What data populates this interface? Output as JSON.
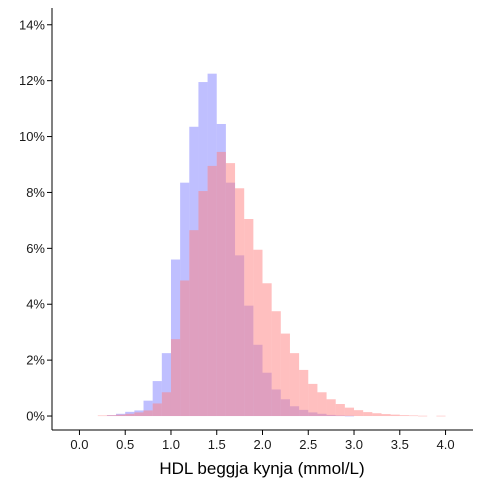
{
  "chart_data": {
    "type": "bar",
    "title": "",
    "xlabel": "HDL beggja kynja (mmol/L)",
    "ylabel": "",
    "x_range": [
      -0.3,
      4.3
    ],
    "ylim": [
      -0.005,
      0.146
    ],
    "x_ticks": [
      {
        "value": 0.0,
        "label": "0.0"
      },
      {
        "value": 0.5,
        "label": "0.5"
      },
      {
        "value": 1.0,
        "label": "1.0"
      },
      {
        "value": 1.5,
        "label": "1.5"
      },
      {
        "value": 2.0,
        "label": "2.0"
      },
      {
        "value": 2.5,
        "label": "2.5"
      },
      {
        "value": 3.0,
        "label": "3.0"
      },
      {
        "value": 3.5,
        "label": "3.5"
      },
      {
        "value": 4.0,
        "label": "4.0"
      }
    ],
    "y_ticks": [
      {
        "value": 0.0,
        "label": "0%"
      },
      {
        "value": 0.02,
        "label": "2%"
      },
      {
        "value": 0.04,
        "label": "4%"
      },
      {
        "value": 0.06,
        "label": "6%"
      },
      {
        "value": 0.08,
        "label": "8%"
      },
      {
        "value": 0.1,
        "label": "10%"
      },
      {
        "value": 0.12,
        "label": "12%"
      },
      {
        "value": 0.14,
        "label": "14%"
      }
    ],
    "grid": false,
    "legend": "none",
    "bin_width": 0.1,
    "bin_start": 0.2,
    "series": [
      {
        "color": "#7f7fff",
        "values": [
          0,
          0.0003,
          0.0008,
          0.0015,
          0.002,
          0.0055,
          0.0125,
          0.0225,
          0.056,
          0.0835,
          0.1035,
          0.1195,
          0.1225,
          0.1045,
          0.0835,
          0.0575,
          0.0395,
          0.0255,
          0.0155,
          0.0095,
          0.006,
          0.0035,
          0.0022,
          0.0013,
          0.0008,
          0.0004,
          0.0002,
          0.0001,
          0,
          0,
          0,
          0,
          0,
          0,
          0,
          0,
          0,
          0
        ]
      },
      {
        "color": "#ff7f7f",
        "values": [
          0.0002,
          0.0003,
          0.0005,
          0.0008,
          0.0013,
          0.002,
          0.0045,
          0.0085,
          0.0275,
          0.0485,
          0.0665,
          0.0805,
          0.0895,
          0.0945,
          0.0905,
          0.0815,
          0.0705,
          0.0595,
          0.0475,
          0.0375,
          0.0295,
          0.0225,
          0.0165,
          0.0115,
          0.0085,
          0.006,
          0.0043,
          0.003,
          0.0021,
          0.0014,
          0.001,
          0.0007,
          0.0005,
          0.0003,
          0.0002,
          0.0001,
          0,
          0.0001
        ]
      }
    ]
  }
}
